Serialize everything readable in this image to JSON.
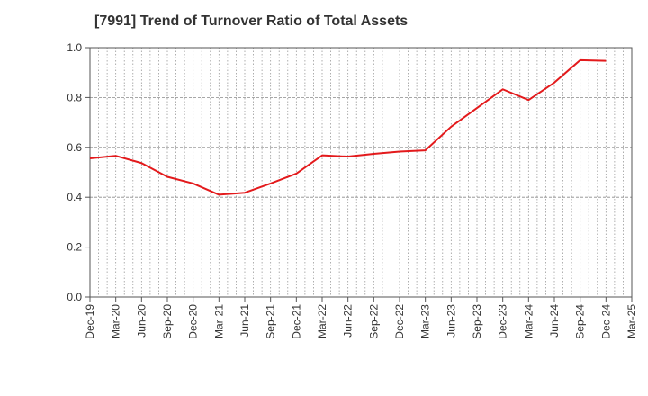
{
  "chart_data": {
    "type": "line",
    "title": "[7991]  Trend of Turnover Ratio of Total Assets",
    "xlabel": "",
    "ylabel": "",
    "ylim": [
      0,
      1.0
    ],
    "yticks": [
      "0.0",
      "0.2",
      "0.4",
      "0.6",
      "0.8",
      "1.0"
    ],
    "x": [
      "Dec-19",
      "Mar-20",
      "Jun-20",
      "Sep-20",
      "Dec-20",
      "Mar-21",
      "Jun-21",
      "Sep-21",
      "Dec-21",
      "Mar-22",
      "Jun-22",
      "Sep-22",
      "Dec-22",
      "Mar-23",
      "Jun-23",
      "Sep-23",
      "Dec-23",
      "Mar-24",
      "Jun-24",
      "Sep-24",
      "Dec-24",
      "Mar-25"
    ],
    "grid": true,
    "series": [
      {
        "color": "#e31a1c",
        "values": [
          0.556,
          0.566,
          0.537,
          0.482,
          0.455,
          0.41,
          0.418,
          0.455,
          0.495,
          0.568,
          0.563,
          0.574,
          0.583,
          0.588,
          0.683,
          0.758,
          0.833,
          0.79,
          0.86,
          0.95,
          0.947,
          null
        ]
      }
    ]
  }
}
